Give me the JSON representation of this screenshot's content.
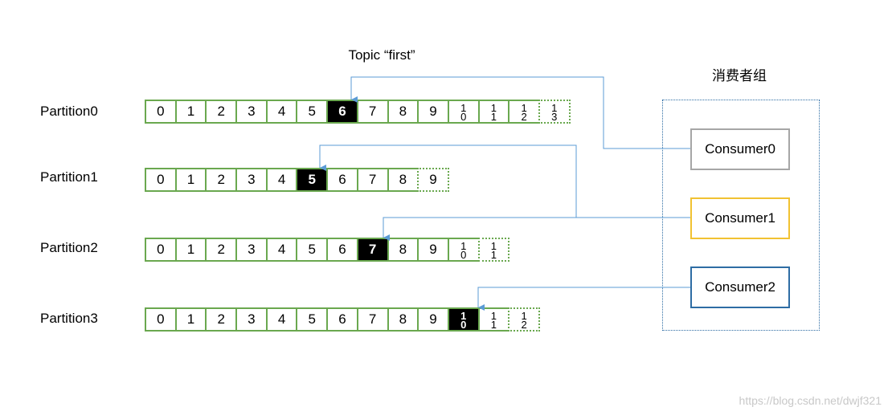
{
  "title": "Topic “first”",
  "group_label": "消费者组",
  "partitions": [
    {
      "label": "Partition0",
      "cells": [
        "0",
        "1",
        "2",
        "3",
        "4",
        "5",
        "6",
        "7",
        "8",
        "9",
        "10",
        "11",
        "12",
        "13"
      ],
      "current": 6,
      "dotted_from": 13
    },
    {
      "label": "Partition1",
      "cells": [
        "0",
        "1",
        "2",
        "3",
        "4",
        "5",
        "6",
        "7",
        "8",
        "9"
      ],
      "current": 5,
      "dotted_from": 9
    },
    {
      "label": "Partition2",
      "cells": [
        "0",
        "1",
        "2",
        "3",
        "4",
        "5",
        "6",
        "7",
        "8",
        "9",
        "10",
        "11"
      ],
      "current": 7,
      "dotted_from": 11
    },
    {
      "label": "Partition3",
      "cells": [
        "0",
        "1",
        "2",
        "3",
        "4",
        "5",
        "6",
        "7",
        "8",
        "9",
        "10",
        "11",
        "12"
      ],
      "current": 10,
      "dotted_from": 12
    }
  ],
  "consumers": [
    {
      "label": "Consumer0",
      "border_color": "#a6a6a6"
    },
    {
      "label": "Consumer1",
      "border_color": "#f1c232"
    },
    {
      "label": "Consumer2",
      "border_color": "#2e6da4"
    }
  ],
  "colors": {
    "cell_border": "#6aa84f",
    "arrow": "#5b9bd5",
    "group_border": "#2e6da4",
    "highlight": "#000000"
  },
  "watermark": "https://blog.csdn.net/dwjf321"
}
